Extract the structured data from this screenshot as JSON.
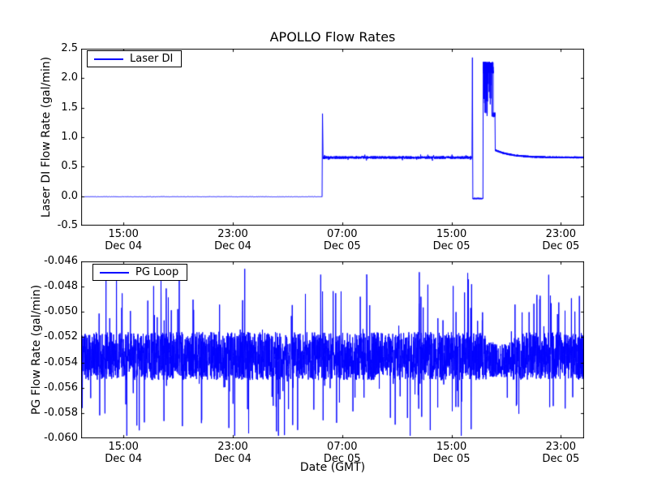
{
  "figure": {
    "title": "APOLLO Flow Rates",
    "xlabel": "Date (GMT)",
    "background": "#ffffff",
    "line_color": "#0000ff",
    "axes_color": "#000000"
  },
  "chart_data": [
    {
      "type": "line",
      "title": "APOLLO Flow Rates",
      "ylabel": "Laser DI Flow Rate (gal/min)",
      "legend": {
        "label": "Laser DI",
        "position": "upper-left"
      },
      "grid": false,
      "ylim": [
        -0.5,
        2.5
      ],
      "ytick_values": [
        -0.5,
        0.0,
        0.5,
        1.0,
        1.5,
        2.0,
        2.5
      ],
      "ytick_labels": [
        "-0.5",
        "0.0",
        "0.5",
        "1.0",
        "1.5",
        "2.0",
        "2.5"
      ],
      "x_unit": "hours since Dec 04 00:00 GMT",
      "xlim": [
        11.9,
        48.7
      ],
      "xtick_values": [
        15,
        23,
        31,
        39,
        47
      ],
      "xtick_labels": [
        {
          "time": "15:00",
          "date": "Dec 04"
        },
        {
          "time": "23:00",
          "date": "Dec 04"
        },
        {
          "time": "07:00",
          "date": "Dec 05"
        },
        {
          "time": "15:00",
          "date": "Dec 05"
        },
        {
          "time": "23:00",
          "date": "Dec 05"
        }
      ],
      "series": [
        {
          "name": "Laser DI",
          "color": "#0000ff",
          "segments": [
            {
              "type": "flat",
              "t0": 11.9,
              "t1": 29.53,
              "level": -0.01,
              "noise": 0.004,
              "pts": 700
            },
            {
              "type": "spike",
              "t": 29.56,
              "peak": 1.4
            },
            {
              "type": "flat",
              "t0": 29.6,
              "t1": 40.5,
              "level": 0.655,
              "noise": 0.022,
              "pts": 1600,
              "spike_p": 0.02,
              "spike_min": 0.02,
              "spike_max": 0.05
            },
            {
              "type": "spike",
              "t": 40.53,
              "peak": 2.35
            },
            {
              "type": "flat",
              "t0": 40.56,
              "t1": 41.3,
              "level": -0.04,
              "noise": 0.012,
              "pts": 120
            },
            {
              "type": "flat",
              "t0": 41.32,
              "t1": 42.05,
              "level": 2.18,
              "noise": 0.1,
              "pts": 350,
              "dip_p": 0.08,
              "dip_min": 1.35,
              "dip_max": 2.0,
              "clip_max": 2.3
            },
            {
              "type": "flat",
              "t0": 42.05,
              "t1": 42.18,
              "level": 1.38,
              "noise": 0.04,
              "pts": 40
            },
            {
              "type": "decay",
              "t0": 42.2,
              "t1": 48.7,
              "from": 0.78,
              "to": 0.655,
              "tau": 1.2,
              "noise": 0.016,
              "pts": 1400
            }
          ]
        }
      ]
    },
    {
      "type": "line",
      "title": "",
      "ylabel": "PG Flow Rate (gal/min)",
      "xlabel": "Date (GMT)",
      "legend": {
        "label": "PG Loop",
        "position": "upper-left"
      },
      "grid": false,
      "ylim": [
        -0.06,
        -0.046
      ],
      "ytick_values": [
        -0.06,
        -0.058,
        -0.056,
        -0.054,
        -0.052,
        -0.05,
        -0.048,
        -0.046
      ],
      "ytick_labels": [
        "-0.060",
        "-0.058",
        "-0.056",
        "-0.054",
        "-0.052",
        "-0.050",
        "-0.048",
        "-0.046"
      ],
      "x_unit": "hours since Dec 04 00:00 GMT",
      "xlim": [
        11.9,
        48.7
      ],
      "xtick_values": [
        15,
        23,
        31,
        39,
        47
      ],
      "xtick_labels": [
        {
          "time": "15:00",
          "date": "Dec 04"
        },
        {
          "time": "23:00",
          "date": "Dec 04"
        },
        {
          "time": "07:00",
          "date": "Dec 05"
        },
        {
          "time": "15:00",
          "date": "Dec 05"
        },
        {
          "time": "23:00",
          "date": "Dec 05"
        }
      ],
      "series": [
        {
          "name": "PG Loop",
          "color": "#0000ff",
          "segments": [
            {
              "type": "flat",
              "t0": 11.9,
              "t1": 41.5,
              "level": -0.0535,
              "noise": 0.0019,
              "pts": 2700,
              "spike_p": 0.06,
              "spike_min": 0.0015,
              "spike_max": 0.0062,
              "clip_min": -0.0598,
              "clip_max": -0.0465
            },
            {
              "type": "flat",
              "t0": 41.5,
              "t1": 43.5,
              "level": -0.0538,
              "noise": 0.0014,
              "pts": 200,
              "spike_p": 0.02,
              "spike_min": 0.001,
              "spike_max": 0.004,
              "clip_min": -0.0598,
              "clip_max": -0.0465
            },
            {
              "type": "flat",
              "t0": 43.5,
              "t1": 48.7,
              "level": -0.0535,
              "noise": 0.0019,
              "pts": 500,
              "spike_p": 0.06,
              "spike_min": 0.0015,
              "spike_max": 0.0062,
              "clip_min": -0.0598,
              "clip_max": -0.0465
            }
          ]
        }
      ]
    }
  ]
}
